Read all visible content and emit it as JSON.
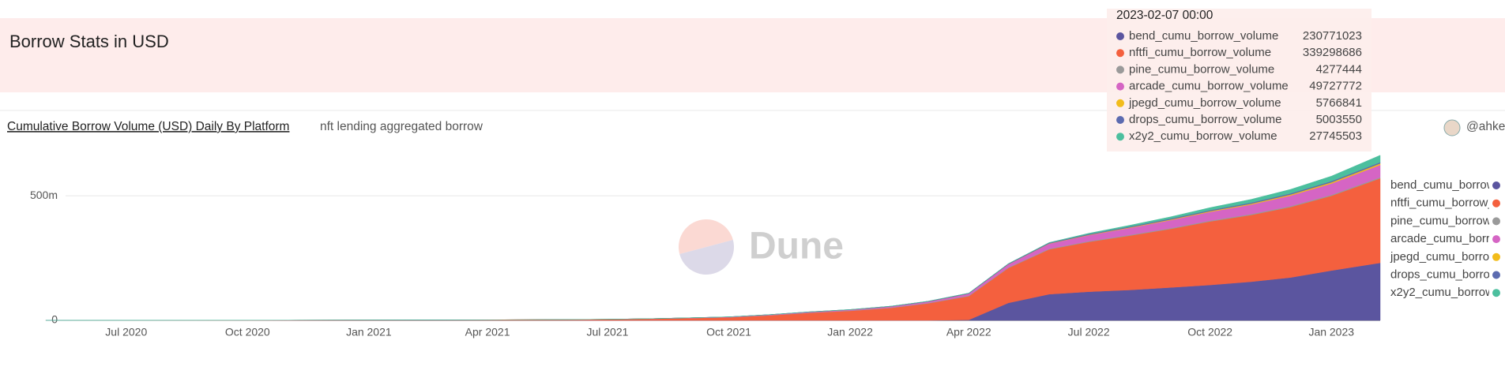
{
  "header": {
    "title": "Borrow Stats in USD"
  },
  "chart_data": {
    "type": "area",
    "stacked": true,
    "title": "Cumulative Borrow Volume (USD) Daily By Platform",
    "subtitle": "nft lending aggregated borrow",
    "author": "@ahke",
    "watermark": "Dune",
    "x": [
      "2020-05",
      "2020-06",
      "2020-07",
      "2020-08",
      "2020-09",
      "2020-10",
      "2020-11",
      "2020-12",
      "2021-01",
      "2021-02",
      "2021-03",
      "2021-04",
      "2021-05",
      "2021-06",
      "2021-07",
      "2021-08",
      "2021-09",
      "2021-10",
      "2021-11",
      "2021-12",
      "2022-01",
      "2022-02",
      "2022-03",
      "2022-04",
      "2022-05",
      "2022-06",
      "2022-07",
      "2022-08",
      "2022-09",
      "2022-10",
      "2022-11",
      "2022-12",
      "2023-01",
      "2023-02-07"
    ],
    "xlim": [
      "2020-05-16",
      "2023-02-07"
    ],
    "xticks": [
      {
        "value": "2020-07",
        "label": "Jul 2020"
      },
      {
        "value": "2020-10",
        "label": "Oct 2020"
      },
      {
        "value": "2021-01",
        "label": "Jan 2021"
      },
      {
        "value": "2021-04",
        "label": "Apr 2021"
      },
      {
        "value": "2021-07",
        "label": "Jul 2021"
      },
      {
        "value": "2021-10",
        "label": "Oct 2021"
      },
      {
        "value": "2022-01",
        "label": "Jan 2022"
      },
      {
        "value": "2022-04",
        "label": "Apr 2022"
      },
      {
        "value": "2022-07",
        "label": "Jul 2022"
      },
      {
        "value": "2022-10",
        "label": "Oct 2022"
      },
      {
        "value": "2023-01",
        "label": "Jan 2023"
      }
    ],
    "ylim": [
      0,
      700000000
    ],
    "yticks": [
      0,
      {
        "value": 500000000,
        "label": "500m"
      }
    ],
    "grid": true,
    "legend": "right",
    "tooltip": {
      "title": "2023-02-07 00:00"
    },
    "series": [
      {
        "name": "bend_cumu_borrow_volume",
        "color": "#5b559f",
        "values": [
          0,
          0,
          0,
          0,
          0,
          0,
          0,
          0,
          0,
          0,
          0,
          0,
          0,
          0,
          0,
          0,
          0,
          0,
          0,
          0,
          0,
          0,
          0,
          2000000,
          70000000,
          105000000,
          115000000,
          122000000,
          132000000,
          142000000,
          155000000,
          172000000,
          200000000,
          230771023
        ]
      },
      {
        "name": "nftfi_cumu_borrow_volume",
        "color": "#f4603e",
        "values": [
          100000,
          200000,
          300000,
          400000,
          500000,
          600000,
          800000,
          1000000,
          1200000,
          1500000,
          1800000,
          2200000,
          2600000,
          3200000,
          4000000,
          6000000,
          9000000,
          12000000,
          20000000,
          30000000,
          38000000,
          50000000,
          68000000,
          95000000,
          140000000,
          180000000,
          200000000,
          218000000,
          235000000,
          255000000,
          268000000,
          283000000,
          300000000,
          339298686
        ]
      },
      {
        "name": "pine_cumu_borrow_volume",
        "color": "#9a9a9a",
        "values": [
          0,
          0,
          0,
          0,
          0,
          0,
          0,
          0,
          0,
          0,
          0,
          0,
          0,
          0,
          0,
          0,
          200000,
          400000,
          700000,
          1000000,
          1300000,
          1600000,
          1900000,
          2200000,
          2500000,
          2700000,
          2900000,
          3100000,
          3300000,
          3500000,
          3700000,
          3900000,
          4100000,
          4277444
        ]
      },
      {
        "name": "arcade_cumu_borrow_volume",
        "color": "#d565c4",
        "values": [
          0,
          0,
          0,
          0,
          0,
          0,
          0,
          0,
          0,
          0,
          0,
          0,
          0,
          200000,
          400000,
          700000,
          1000000,
          1500000,
          2000000,
          2500000,
          3000000,
          4000000,
          5000000,
          8000000,
          12000000,
          20000000,
          24000000,
          28000000,
          32000000,
          35000000,
          38000000,
          42000000,
          45000000,
          49727772
        ]
      },
      {
        "name": "jpegd_cumu_borrow_volume",
        "color": "#f2bc1b",
        "values": [
          0,
          0,
          0,
          0,
          0,
          0,
          0,
          0,
          0,
          0,
          0,
          0,
          0,
          0,
          0,
          0,
          0,
          0,
          0,
          0,
          0,
          0,
          0,
          0,
          500000,
          1000000,
          1500000,
          2000000,
          2500000,
          3000000,
          3500000,
          4200000,
          5000000,
          5766841
        ]
      },
      {
        "name": "drops_cumu_borrow_volume",
        "color": "#5c6bb0",
        "values": [
          0,
          0,
          0,
          0,
          0,
          0,
          0,
          0,
          0,
          0,
          0,
          0,
          0,
          0,
          0,
          0,
          100000,
          300000,
          500000,
          800000,
          1100000,
          1400000,
          1700000,
          2000000,
          2400000,
          2800000,
          3100000,
          3400000,
          3700000,
          4000000,
          4300000,
          4600000,
          4800000,
          5003550
        ]
      },
      {
        "name": "x2y2_cumu_borrow_volume",
        "color": "#4cbf9e",
        "values": [
          0,
          0,
          0,
          0,
          0,
          0,
          0,
          0,
          0,
          0,
          0,
          0,
          0,
          0,
          0,
          0,
          0,
          0,
          0,
          0,
          0,
          0,
          0,
          0,
          0,
          1000000,
          3000000,
          5000000,
          7000000,
          10000000,
          13000000,
          16000000,
          20000000,
          27745503
        ]
      }
    ]
  }
}
